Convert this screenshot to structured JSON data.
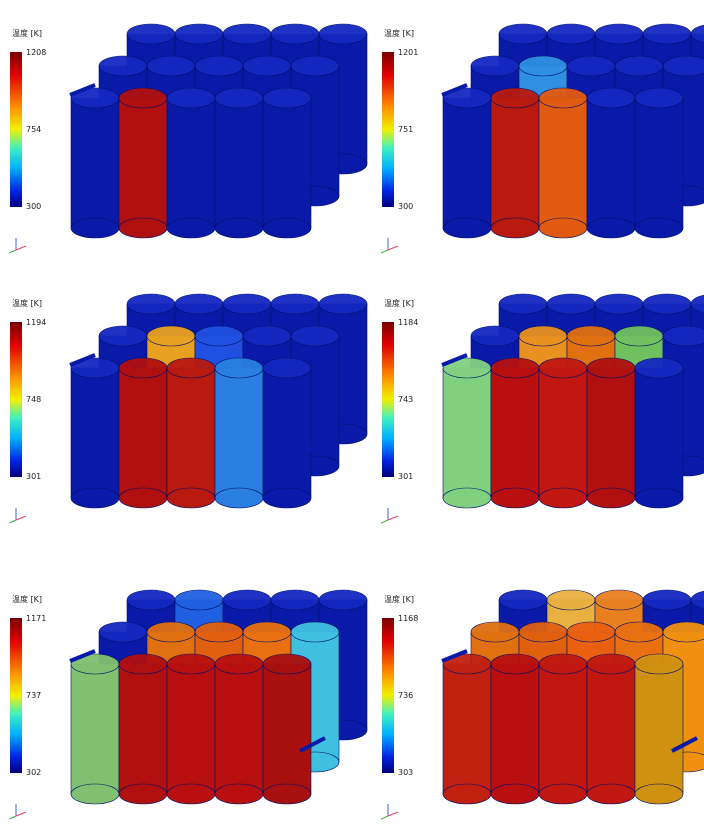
{
  "panels": [
    {
      "scale_label": "温度 [K]",
      "max": 1208,
      "mid": 754,
      "min": 300
    },
    {
      "scale_label": "温度 [K]",
      "max": 1201,
      "mid": 751,
      "min": 300
    },
    {
      "scale_label": "温度 [K]",
      "max": 1194,
      "mid": 748,
      "min": 301
    },
    {
      "scale_label": "温度 [K]",
      "max": 1184,
      "mid": 743,
      "min": 301
    },
    {
      "scale_label": "温度 [K]",
      "max": 1171,
      "mid": 737,
      "min": 302
    },
    {
      "scale_label": "温度 [K]",
      "max": 1168,
      "mid": 736,
      "min": 303
    }
  ]
}
